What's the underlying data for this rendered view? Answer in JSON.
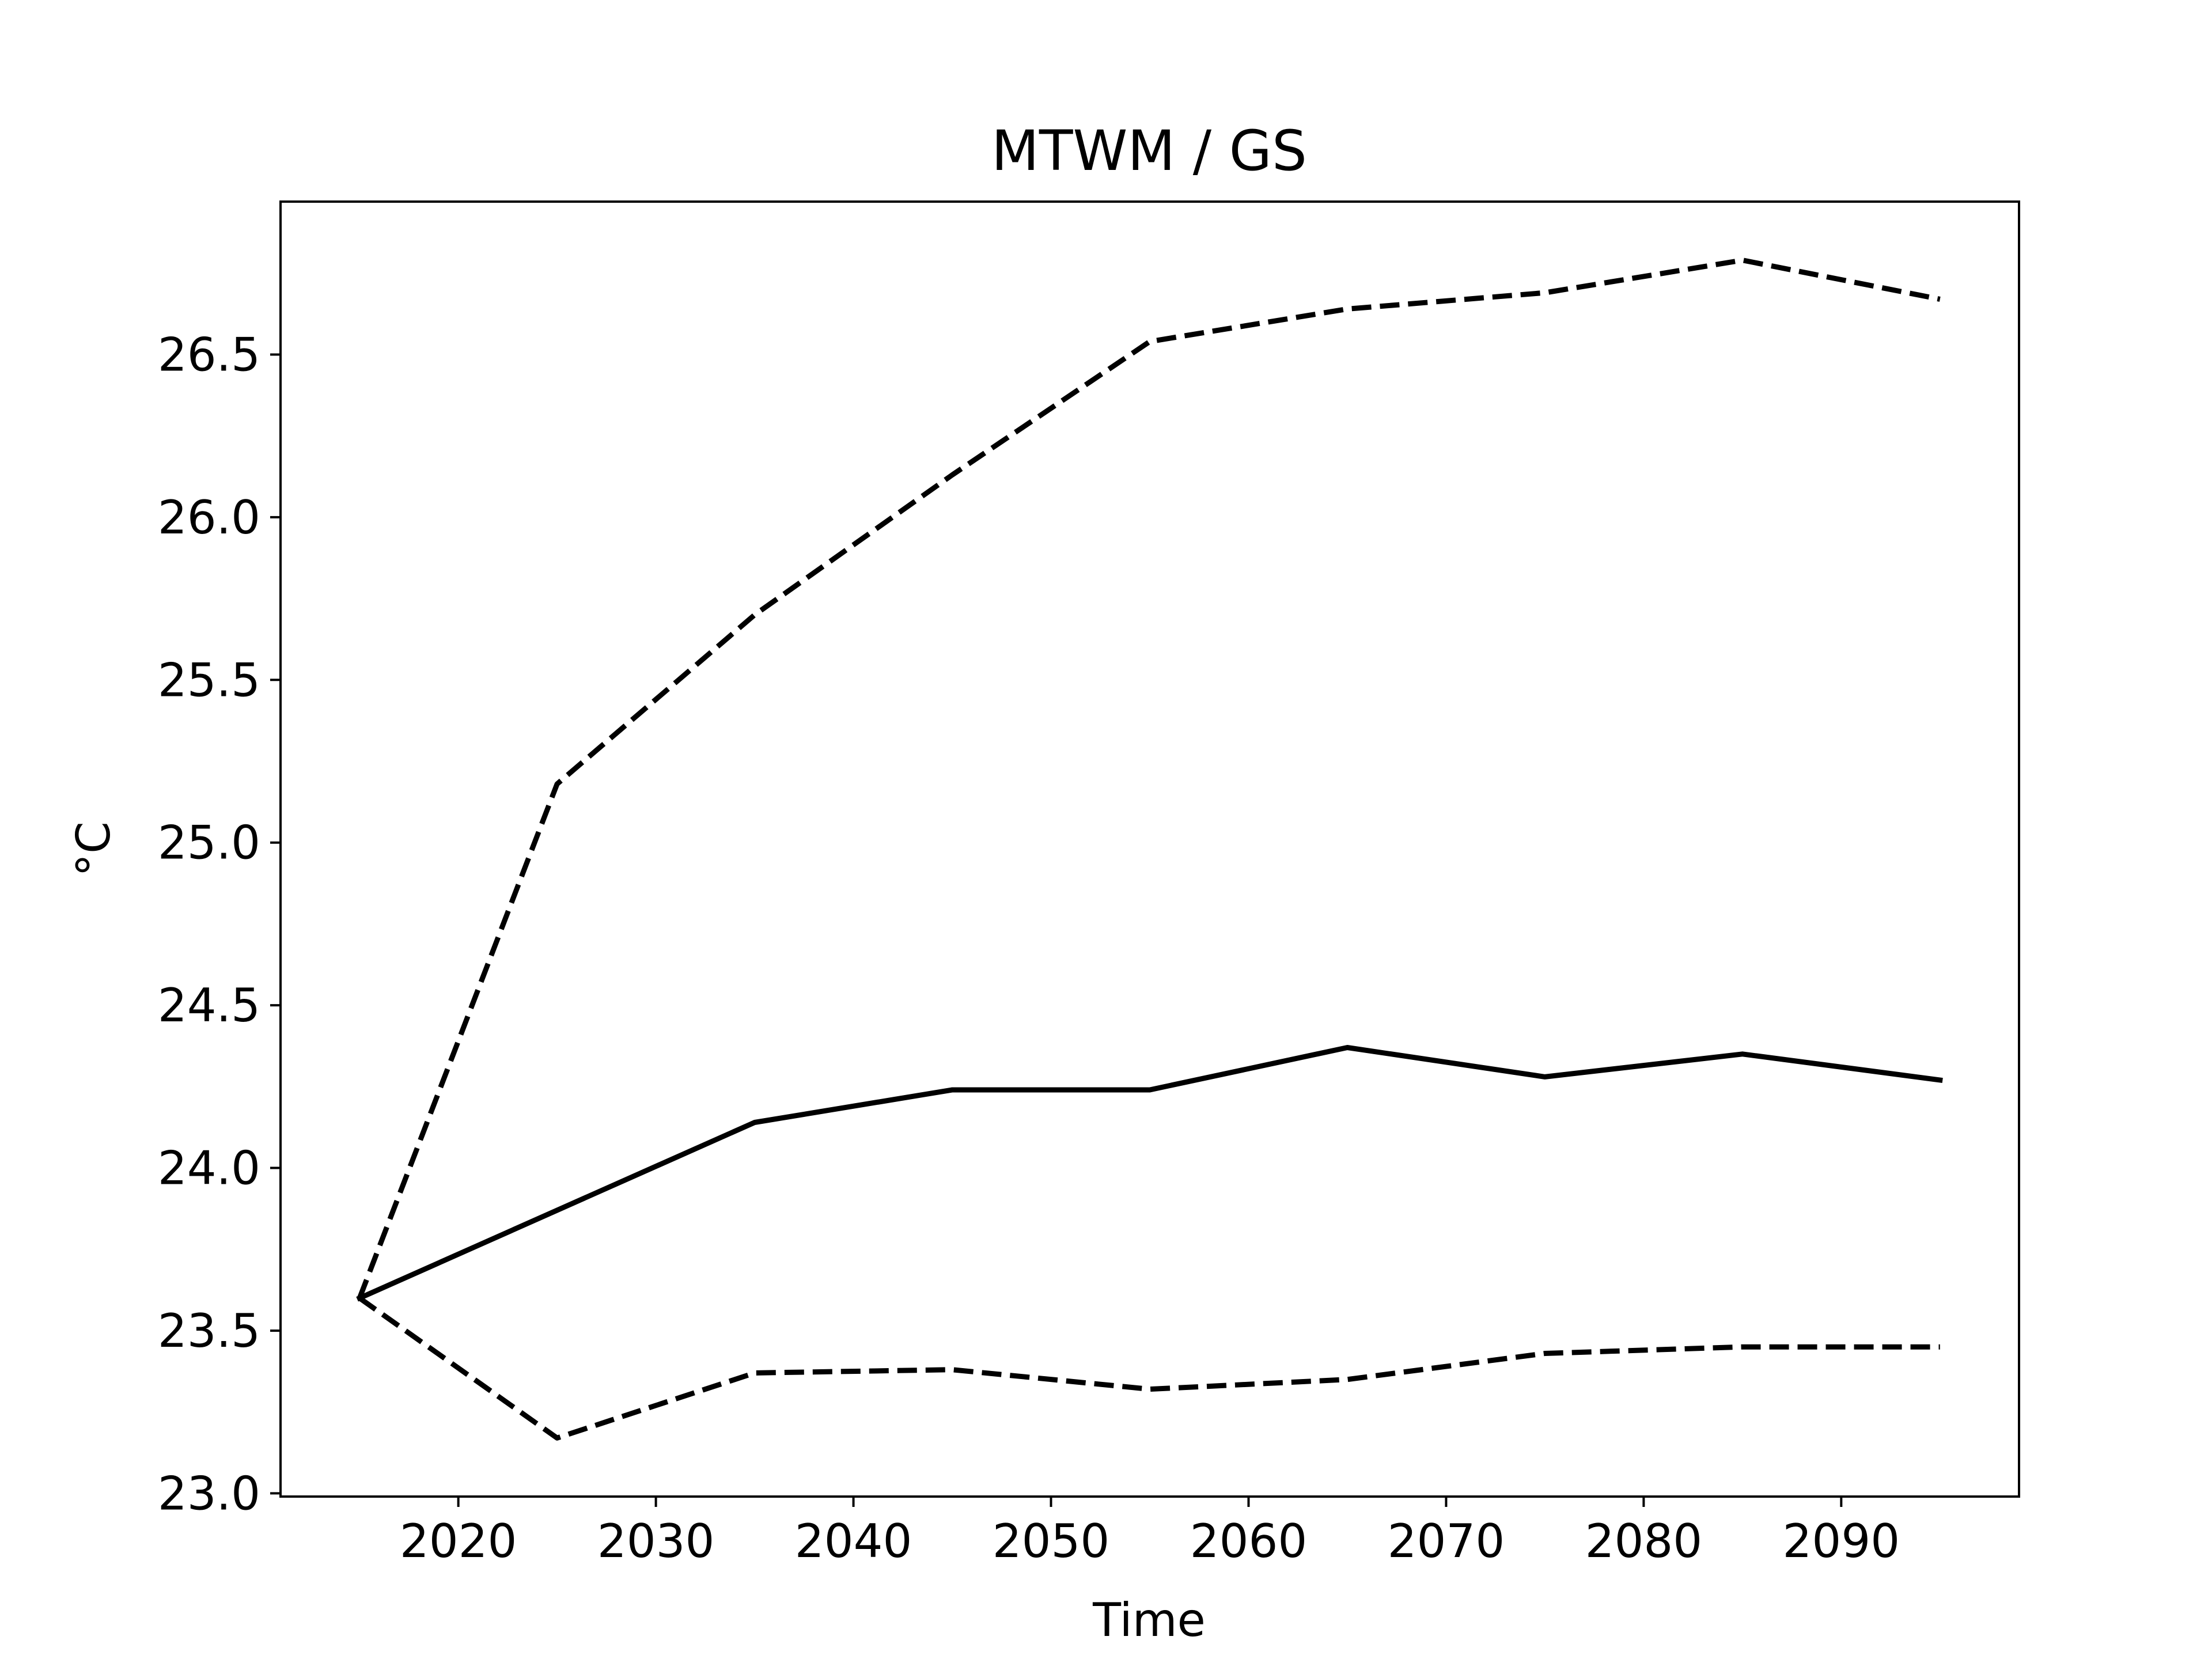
{
  "chart_data": {
    "type": "line",
    "title": "MTWM / GS",
    "xlabel": "Time",
    "ylabel": "°C",
    "xlim": [
      2011,
      2099
    ],
    "ylim": [
      22.99,
      26.97
    ],
    "xticks": [
      2020,
      2030,
      2040,
      2050,
      2060,
      2070,
      2080,
      2090
    ],
    "xtick_labels": [
      "2020",
      "2030",
      "2040",
      "2050",
      "2060",
      "2070",
      "2080",
      "2090"
    ],
    "yticks": [
      23.0,
      23.5,
      24.0,
      24.5,
      25.0,
      25.5,
      26.0,
      26.5
    ],
    "ytick_labels": [
      "23.0",
      "23.5",
      "24.0",
      "24.5",
      "25.0",
      "25.5",
      "26.0",
      "26.5"
    ],
    "grid": false,
    "x": [
      2015,
      2025,
      2035,
      2045,
      2055,
      2065,
      2075,
      2085,
      2095
    ],
    "series": [
      {
        "style": "dashed",
        "color": "#000000",
        "values": [
          23.6,
          25.18,
          25.7,
          26.13,
          26.54,
          26.64,
          26.69,
          26.79,
          26.67
        ]
      },
      {
        "style": "solid",
        "color": "#000000",
        "values": [
          23.6,
          23.87,
          24.14,
          24.24,
          24.24,
          24.37,
          24.28,
          24.35,
          24.27
        ]
      },
      {
        "style": "dashed",
        "color": "#000000",
        "values": [
          23.6,
          23.17,
          23.37,
          23.38,
          23.32,
          23.35,
          23.43,
          23.45,
          23.45
        ]
      }
    ]
  }
}
